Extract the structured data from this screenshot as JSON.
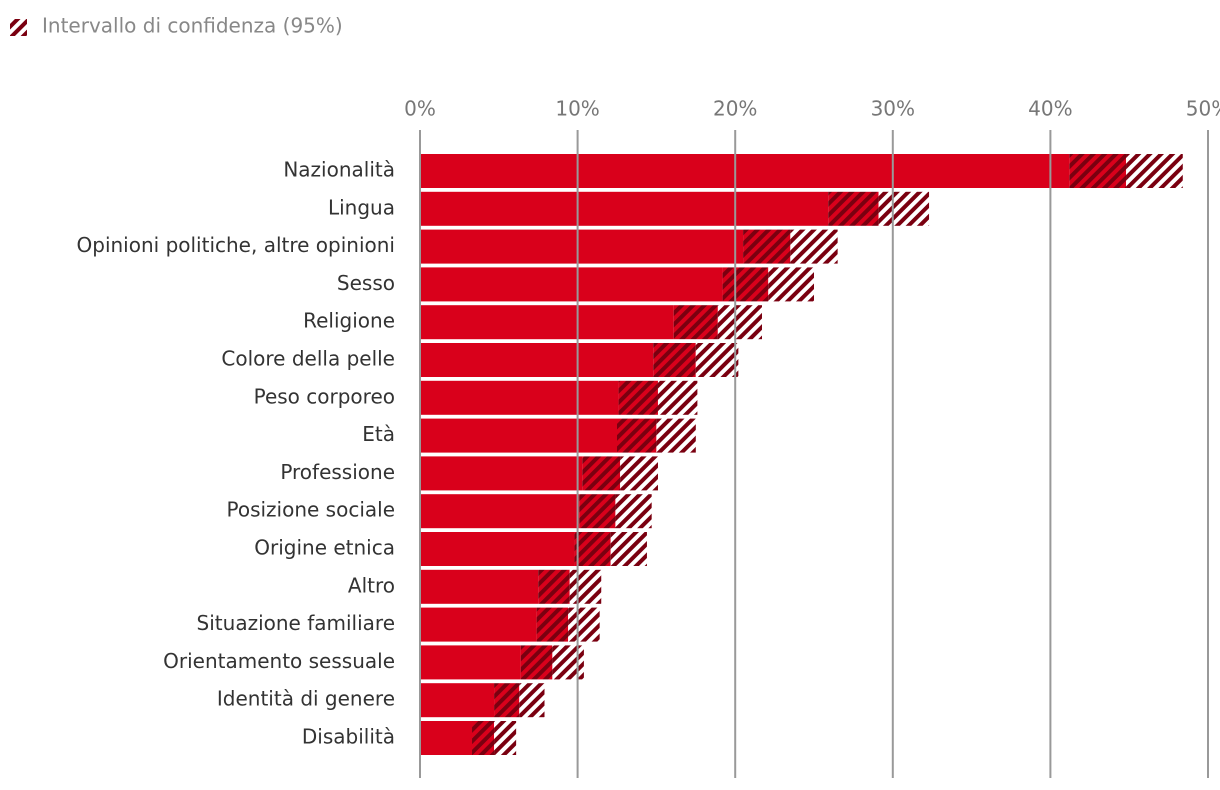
{
  "chart_data": {
    "type": "bar",
    "orientation": "horizontal",
    "legend_label": "Intervallo di confidenza (95%)",
    "categories": [
      "Nazionalità",
      "Lingua",
      "Opinioni politiche, altre opinioni",
      "Sesso",
      "Religione",
      "Colore della pelle",
      "Peso corporeo",
      "Età",
      "Professione",
      "Posizione sociale",
      "Origine etnica",
      "Altro",
      "Situazione familiare",
      "Orientamento sessuale",
      "Identità di genere",
      "Disabilità"
    ],
    "values": [
      44.8,
      29.1,
      23.5,
      22.1,
      18.9,
      17.5,
      15.1,
      15.0,
      12.7,
      12.4,
      12.1,
      9.5,
      9.4,
      8.4,
      6.3,
      4.7
    ],
    "errors": [
      3.6,
      3.2,
      3.0,
      2.9,
      2.8,
      2.7,
      2.5,
      2.5,
      2.4,
      2.3,
      2.3,
      2.0,
      2.0,
      2.0,
      1.6,
      1.4
    ],
    "color": "#d9001b",
    "ci_color": "#7a0010",
    "xlim": [
      0,
      50
    ],
    "xticks": [
      {
        "value": 0,
        "label": "0%"
      },
      {
        "value": 10,
        "label": "10%"
      },
      {
        "value": 20,
        "label": "20%"
      },
      {
        "value": 30,
        "label": "30%"
      },
      {
        "value": 40,
        "label": "40%"
      },
      {
        "value": 50,
        "label": "50%"
      }
    ],
    "grid": true
  }
}
